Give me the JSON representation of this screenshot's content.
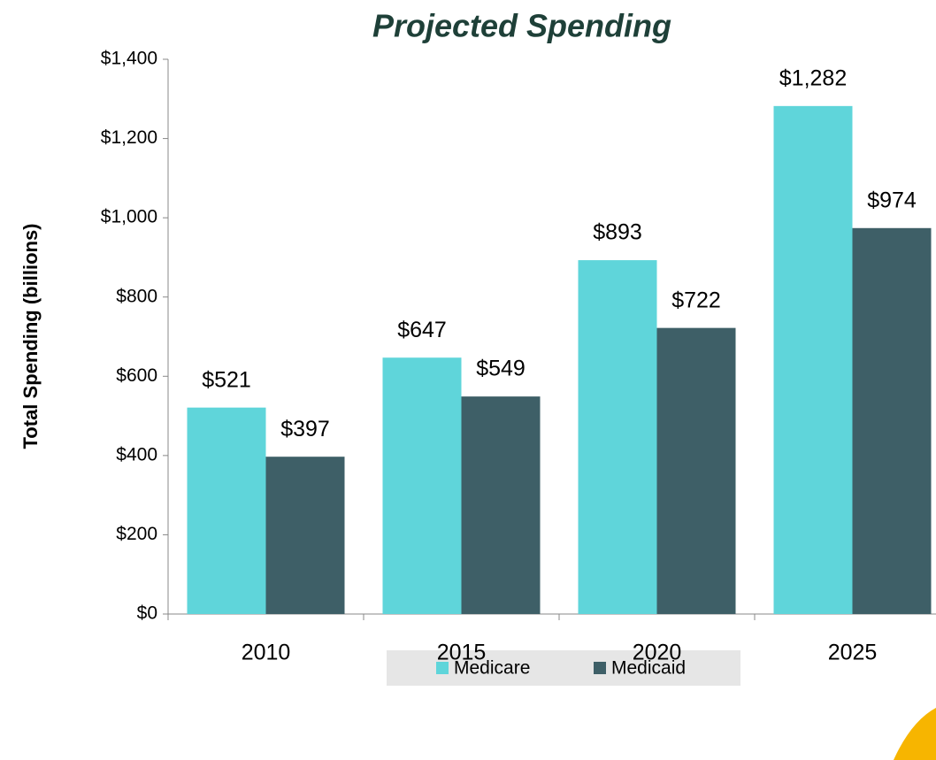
{
  "chart_data": {
    "type": "bar",
    "title": "Projected Spending",
    "y_axis_label": "Total Spending (billions)",
    "categories": [
      "2010",
      "2015",
      "2020",
      "2025"
    ],
    "series": [
      {
        "name": "Medicare",
        "color": "#5fd5da",
        "values": [
          521,
          647,
          893,
          1282
        ],
        "value_labels": [
          "$521",
          "$647",
          "$893",
          "$1,282"
        ]
      },
      {
        "name": "Medicaid",
        "color": "#3e5f67",
        "values": [
          397,
          549,
          722,
          974
        ],
        "value_labels": [
          "$397",
          "$549",
          "$722",
          "$974"
        ]
      }
    ],
    "ylim": [
      0,
      1400
    ],
    "yticks": [
      {
        "value": 0,
        "label": "$0"
      },
      {
        "value": 200,
        "label": "$200"
      },
      {
        "value": 400,
        "label": "$400"
      },
      {
        "value": 600,
        "label": "$600"
      },
      {
        "value": 800,
        "label": "$800"
      },
      {
        "value": 1000,
        "label": "$1,000"
      },
      {
        "value": 1200,
        "label": "$1,200"
      },
      {
        "value": 1400,
        "label": "$1,400"
      }
    ],
    "legend": "bottom",
    "grid": false
  }
}
